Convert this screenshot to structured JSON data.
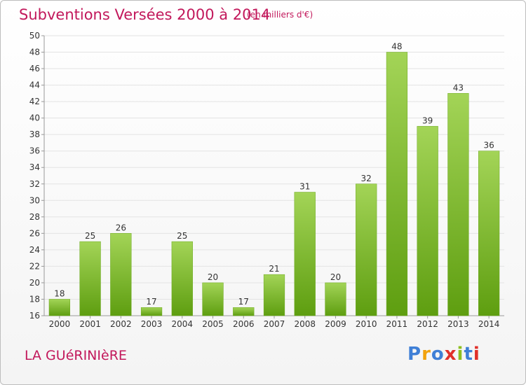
{
  "header": {
    "title": "Subventions Versées 2000 à 2014",
    "unit": "(en milliers d'€)"
  },
  "footer": {
    "commune": "LA GUéRINIèRE",
    "logo_letters": [
      "P",
      "r",
      "o",
      "x",
      "i",
      "t",
      "i"
    ],
    "logo_colors": [
      "#3f7fd6",
      "#f2a20c",
      "#3f7fd6",
      "#e0302a",
      "#8dbf1f",
      "#3f7fd6",
      "#e0302a"
    ]
  },
  "colors": {
    "bar_top": "#a3d457",
    "bar_bottom": "#5e9e10",
    "text": "#333333",
    "grid": "#e3e3e3",
    "axis": "#999999"
  },
  "chart_data": {
    "type": "bar",
    "title": "Subventions Versées 2000 à 2014",
    "xlabel": "",
    "ylabel": "",
    "ylim": [
      16,
      50
    ],
    "yticks": [
      16,
      18,
      20,
      22,
      24,
      26,
      28,
      30,
      32,
      34,
      36,
      38,
      40,
      42,
      44,
      46,
      48,
      50
    ],
    "categories": [
      "2000",
      "2001",
      "2002",
      "2003",
      "2004",
      "2005",
      "2006",
      "2007",
      "2008",
      "2009",
      "2010",
      "2011",
      "2012",
      "2013",
      "2014"
    ],
    "values": [
      18,
      25,
      26,
      17,
      25,
      20,
      17,
      21,
      31,
      20,
      32,
      48,
      39,
      43,
      36
    ],
    "grid": true,
    "legend": "none"
  }
}
